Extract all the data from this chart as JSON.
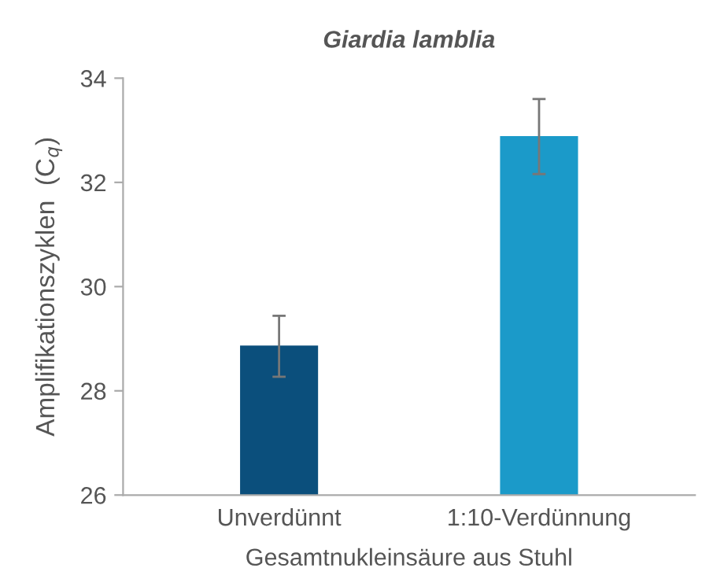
{
  "chart_data": {
    "type": "bar",
    "title": "Giardia lamblia",
    "xlabel": "Gesamtnukleinsäure aus Stuhl",
    "ylabel": "Amplifikationszyklen  (C$_{q}$)",
    "categories": [
      "Unverdünnt",
      "1:10-Verdünnung"
    ],
    "values": [
      28.87,
      32.89
    ],
    "colors": [
      "#0b4f7c",
      "#1b9ac9"
    ],
    "errors": [
      [
        28.27,
        29.44
      ],
      [
        32.16,
        33.6
      ]
    ],
    "ylim": [
      26,
      34
    ],
    "yticks": [
      26,
      28,
      30,
      32,
      34
    ],
    "grid": false,
    "legend": false
  }
}
